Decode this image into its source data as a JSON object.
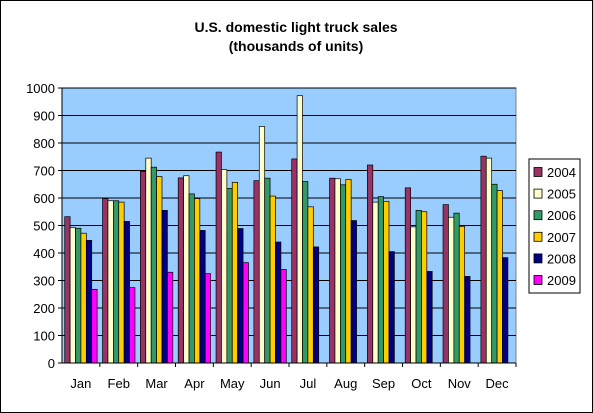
{
  "chart_data": {
    "type": "bar",
    "title": "U.S. domestic light truck sales",
    "subtitle": "(thousands of units)",
    "xlabel": "",
    "ylabel": "",
    "ylim": [
      0,
      1000
    ],
    "yticks": [
      0,
      100,
      200,
      300,
      400,
      500,
      600,
      700,
      800,
      900,
      1000
    ],
    "grid": true,
    "legend_position": "right",
    "categories": [
      "Jan",
      "Feb",
      "Mar",
      "Apr",
      "May",
      "Jun",
      "Jul",
      "Aug",
      "Sep",
      "Oct",
      "Nov",
      "Dec"
    ],
    "series": [
      {
        "name": "2004",
        "color": "#993366",
        "values": [
          532,
          598,
          697,
          673,
          767,
          663,
          742,
          672,
          720,
          637,
          576,
          752
        ]
      },
      {
        "name": "2005",
        "color": "#FFFFCC",
        "values": [
          492,
          590,
          745,
          681,
          703,
          860,
          972,
          670,
          585,
          495,
          530,
          745
        ]
      },
      {
        "name": "2006",
        "color": "#339966",
        "values": [
          490,
          590,
          712,
          615,
          635,
          672,
          660,
          648,
          605,
          555,
          545,
          650
        ]
      },
      {
        "name": "2007",
        "color": "#FFCC00",
        "values": [
          472,
          585,
          678,
          598,
          657,
          607,
          568,
          667,
          588,
          550,
          497,
          627
        ]
      },
      {
        "name": "2008",
        "color": "#000080",
        "values": [
          446,
          515,
          555,
          482,
          489,
          440,
          422,
          518,
          405,
          333,
          315,
          383
        ]
      },
      {
        "name": "2009",
        "color": "#FF00FF",
        "values": [
          268,
          274,
          330,
          325,
          365,
          340,
          null,
          null,
          null,
          null,
          null,
          null
        ]
      }
    ]
  }
}
